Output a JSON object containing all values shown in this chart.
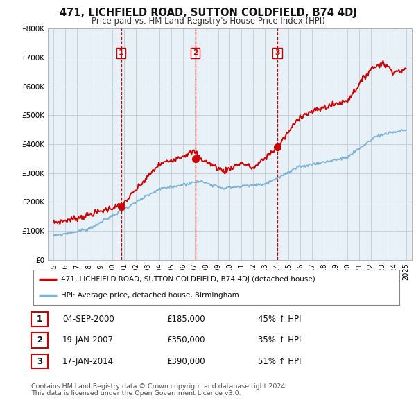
{
  "title": "471, LICHFIELD ROAD, SUTTON COLDFIELD, B74 4DJ",
  "subtitle": "Price paid vs. HM Land Registry's House Price Index (HPI)",
  "legend_line1": "471, LICHFIELD ROAD, SUTTON COLDFIELD, B74 4DJ (detached house)",
  "legend_line2": "HPI: Average price, detached house, Birmingham",
  "footer1": "Contains HM Land Registry data © Crown copyright and database right 2024.",
  "footer2": "This data is licensed under the Open Government Licence v3.0.",
  "table": [
    {
      "num": "1",
      "date": "04-SEP-2000",
      "price": "£185,000",
      "hpi": "45% ↑ HPI"
    },
    {
      "num": "2",
      "date": "19-JAN-2007",
      "price": "£350,000",
      "hpi": "35% ↑ HPI"
    },
    {
      "num": "3",
      "date": "17-JAN-2014",
      "price": "£390,000",
      "hpi": "51% ↑ HPI"
    }
  ],
  "sale_points": [
    {
      "year": 2000.75,
      "price": 185000,
      "label": "1"
    },
    {
      "year": 2007.05,
      "price": 350000,
      "label": "2"
    },
    {
      "year": 2014.05,
      "price": 390000,
      "label": "3"
    }
  ],
  "vlines": [
    2000.75,
    2007.05,
    2014.05
  ],
  "ylim": [
    0,
    800000
  ],
  "xlim": [
    1994.5,
    2025.5
  ],
  "red_color": "#cc0000",
  "blue_color": "#7ab3d4",
  "chart_bg": "#e8f0f8",
  "background_color": "#ffffff",
  "grid_color": "#c8d0d8"
}
